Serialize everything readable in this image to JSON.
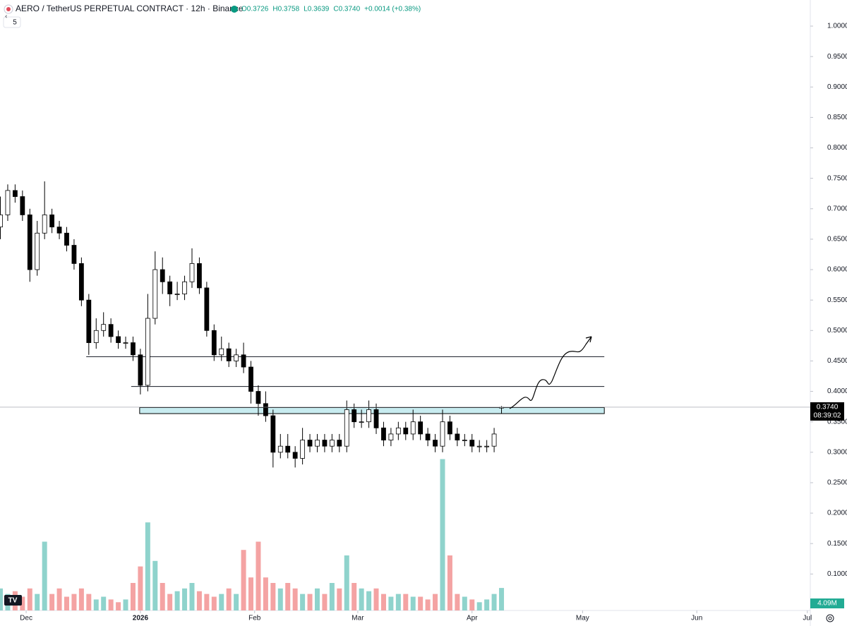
{
  "chart_data": {
    "type": "candlestick",
    "title": "AERO / TetherUS PERPETUAL CONTRACT · 12h · Binance",
    "legend_ohlc": [
      "O0.3726",
      "H0.3758",
      "L0.3639",
      "C0.3740",
      "+0.0014 (+0.38%)"
    ],
    "indicator_count": "5",
    "x": [
      -7,
      -5,
      -3,
      -1,
      1,
      3,
      5,
      7,
      9,
      11,
      13,
      15,
      17,
      19,
      21,
      23,
      25,
      27,
      29,
      31,
      33,
      35,
      37,
      39,
      41,
      43,
      45,
      47,
      49,
      51,
      53,
      55,
      57,
      59,
      61,
      63,
      65,
      67,
      69,
      71,
      73,
      75,
      77,
      79,
      81,
      83,
      85,
      87,
      89,
      91,
      93,
      95,
      97,
      99,
      101,
      103,
      105,
      107,
      109,
      111,
      113,
      115,
      117,
      119,
      121,
      123,
      125,
      127,
      129
    ],
    "open": [
      0.67,
      0.69,
      0.73,
      0.72,
      0.69,
      0.6,
      0.66,
      0.69,
      0.67,
      0.66,
      0.64,
      0.61,
      0.55,
      0.48,
      0.5,
      0.51,
      0.49,
      0.48,
      0.48,
      0.46,
      0.41,
      0.52,
      0.6,
      0.58,
      0.56,
      0.56,
      0.58,
      0.61,
      0.57,
      0.5,
      0.46,
      0.47,
      0.45,
      0.46,
      0.44,
      0.4,
      0.38,
      0.36,
      0.3,
      0.31,
      0.3,
      0.29,
      0.32,
      0.31,
      0.32,
      0.31,
      0.32,
      0.31,
      0.37,
      0.35,
      0.35,
      0.37,
      0.34,
      0.32,
      0.33,
      0.34,
      0.33,
      0.35,
      0.33,
      0.32,
      0.31,
      0.35,
      0.33,
      0.32,
      0.32,
      0.31,
      0.31,
      0.31,
      0.3726
    ],
    "high": [
      0.72,
      0.74,
      0.74,
      0.73,
      0.7,
      0.68,
      0.745,
      0.7,
      0.68,
      0.67,
      0.65,
      0.62,
      0.56,
      0.52,
      0.53,
      0.52,
      0.5,
      0.49,
      0.49,
      0.47,
      0.56,
      0.63,
      0.62,
      0.59,
      0.58,
      0.59,
      0.635,
      0.62,
      0.58,
      0.51,
      0.49,
      0.48,
      0.47,
      0.48,
      0.45,
      0.41,
      0.4,
      0.37,
      0.33,
      0.33,
      0.31,
      0.34,
      0.33,
      0.33,
      0.33,
      0.33,
      0.33,
      0.385,
      0.38,
      0.37,
      0.385,
      0.38,
      0.35,
      0.34,
      0.35,
      0.35,
      0.37,
      0.36,
      0.34,
      0.33,
      0.37,
      0.36,
      0.34,
      0.33,
      0.33,
      0.32,
      0.32,
      0.34,
      0.3758
    ],
    "low": [
      0.65,
      0.68,
      0.71,
      0.68,
      0.58,
      0.59,
      0.65,
      0.66,
      0.65,
      0.63,
      0.6,
      0.54,
      0.46,
      0.47,
      0.49,
      0.48,
      0.47,
      0.47,
      0.45,
      0.395,
      0.4,
      0.51,
      0.56,
      0.54,
      0.55,
      0.55,
      0.57,
      0.56,
      0.49,
      0.45,
      0.45,
      0.44,
      0.44,
      0.43,
      0.38,
      0.36,
      0.35,
      0.275,
      0.29,
      0.29,
      0.275,
      0.28,
      0.3,
      0.3,
      0.3,
      0.3,
      0.3,
      0.3,
      0.34,
      0.34,
      0.34,
      0.33,
      0.31,
      0.31,
      0.32,
      0.32,
      0.32,
      0.32,
      0.31,
      0.3,
      0.3,
      0.32,
      0.31,
      0.31,
      0.3,
      0.3,
      0.3,
      0.3,
      0.3639
    ],
    "close": [
      0.69,
      0.73,
      0.72,
      0.69,
      0.6,
      0.66,
      0.69,
      0.67,
      0.66,
      0.64,
      0.61,
      0.55,
      0.48,
      0.5,
      0.51,
      0.49,
      0.48,
      0.48,
      0.46,
      0.41,
      0.52,
      0.6,
      0.58,
      0.56,
      0.56,
      0.58,
      0.61,
      0.57,
      0.5,
      0.46,
      0.47,
      0.45,
      0.46,
      0.44,
      0.4,
      0.38,
      0.36,
      0.3,
      0.31,
      0.3,
      0.29,
      0.32,
      0.31,
      0.32,
      0.31,
      0.32,
      0.31,
      0.37,
      0.35,
      0.35,
      0.37,
      0.34,
      0.32,
      0.33,
      0.34,
      0.33,
      0.35,
      0.33,
      0.32,
      0.31,
      0.35,
      0.33,
      0.32,
      0.32,
      0.31,
      0.31,
      0.31,
      0.33,
      0.374
    ],
    "volume": {
      "values": [
        4000000,
        3000000,
        3500000,
        2500000,
        4000000,
        3000000,
        12500000,
        3000000,
        4000000,
        2500000,
        3000000,
        4000000,
        3000000,
        2000000,
        2500000,
        2000000,
        1500000,
        2000000,
        5000000,
        8000000,
        16000000,
        9000000,
        5000000,
        3000000,
        3500000,
        4000000,
        5000000,
        3500000,
        3000000,
        2500000,
        3000000,
        4000000,
        3000000,
        11000000,
        6000000,
        12500000,
        6000000,
        5000000,
        4000000,
        5000000,
        4000000,
        3000000,
        3000000,
        4000000,
        3000000,
        5000000,
        4000000,
        10000000,
        5000000,
        4000000,
        3500000,
        4000000,
        3000000,
        2500000,
        3000000,
        3000000,
        2500000,
        2500000,
        2000000,
        3000000,
        27500000,
        10000000,
        3000000,
        2500000,
        2000000,
        1500000,
        2000000,
        3000000,
        4090000
      ],
      "value_labels": [
        null,
        null,
        null,
        null,
        null,
        null,
        null,
        null,
        null,
        null,
        null,
        null,
        null,
        null,
        null,
        null,
        null,
        null,
        null,
        null,
        null,
        null,
        null,
        null,
        null,
        null,
        null,
        null,
        null,
        null,
        null,
        null,
        null,
        null,
        null,
        null,
        null,
        null,
        null,
        null,
        null,
        null,
        null,
        null,
        null,
        null,
        null,
        null,
        null,
        null,
        null,
        null,
        null,
        null,
        null,
        null,
        null,
        null,
        null,
        null,
        null,
        null,
        null,
        null,
        null,
        null,
        null,
        null,
        "4.09M"
      ],
      "up_color": "#8fd3cc",
      "down_color": "#f4a3a3"
    },
    "last_price": {
      "value": 0.374,
      "label": "0.3740"
    },
    "countdown": "08:39:02",
    "up_color": "#ffffff",
    "down_color": "#000000",
    "levels": [
      {
        "value": 0.457,
        "x": [
          16.3,
          156.9
        ]
      },
      {
        "value": 0.408,
        "x": [
          28.5,
          156.9
        ]
      }
    ],
    "zone": {
      "values": [
        0.3635,
        0.3735
      ],
      "x": [
        30.8,
        156.9
      ],
      "color": "#c8ecf0"
    },
    "xlim": [
      -7.1,
      212.8
    ],
    "xticks": [
      {
        "value": 0,
        "label": "Dec"
      },
      {
        "value": 31,
        "label": "2026"
      },
      {
        "value": 62,
        "label": "Feb"
      },
      {
        "value": 90,
        "label": "Mar"
      },
      {
        "value": 121,
        "label": "Apr"
      },
      {
        "value": 151,
        "label": "May"
      },
      {
        "value": 182,
        "label": "Jun"
      },
      {
        "value": 212,
        "label": "Jul"
      }
    ],
    "ylim": [
      0.0401,
      1.0429
    ],
    "yticks": [
      {
        "value": 0.1,
        "label": "0.1000"
      },
      {
        "value": 0.15,
        "label": "0.1500"
      },
      {
        "value": 0.2,
        "label": "0.2000"
      },
      {
        "value": 0.25,
        "label": "0.2500"
      },
      {
        "value": 0.3,
        "label": "0.3000"
      },
      {
        "value": 0.35,
        "label": "0.3500"
      },
      {
        "value": 0.4,
        "label": "0.4000"
      },
      {
        "value": 0.45,
        "label": "0.4500"
      },
      {
        "value": 0.5,
        "label": "0.5000"
      },
      {
        "value": 0.55,
        "label": "0.5500"
      },
      {
        "value": 0.6,
        "label": "0.6000"
      },
      {
        "value": 0.65,
        "label": "0.6500"
      },
      {
        "value": 0.7,
        "label": "0.7000"
      },
      {
        "value": 0.75,
        "label": "0.7500"
      },
      {
        "value": 0.8,
        "label": "0.8000"
      },
      {
        "value": 0.85,
        "label": "0.8500"
      },
      {
        "value": 0.9,
        "label": "0.9000"
      },
      {
        "value": 0.95,
        "label": "0.9500"
      },
      {
        "value": 1.0,
        "label": "1.0000"
      }
    ]
  }
}
